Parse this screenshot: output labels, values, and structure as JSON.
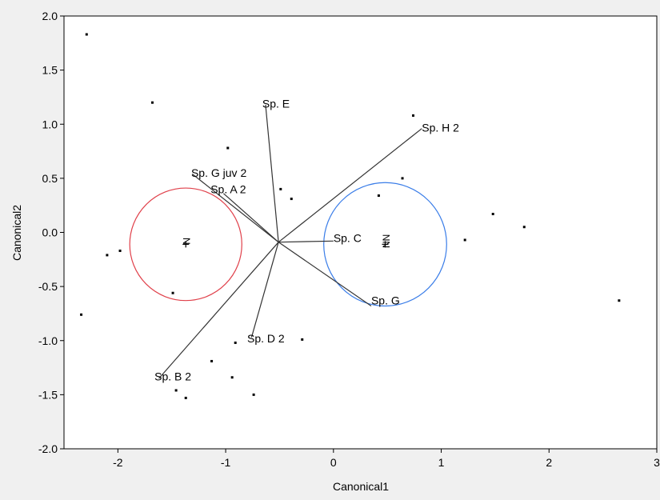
{
  "chart_data": {
    "type": "scatter",
    "title": "",
    "xlabel": "Canonical1",
    "ylabel": "Canonical2",
    "xlim": [
      -2.5,
      3.0
    ],
    "ylim": [
      -2.0,
      2.0
    ],
    "xticks": [
      -2,
      -1,
      0,
      1,
      2,
      3
    ],
    "xtick_labels": [
      "-2",
      "-1",
      "0",
      "1",
      "2",
      "3"
    ],
    "yticks": [
      -2.0,
      -1.5,
      -1.0,
      -0.5,
      0.0,
      0.5,
      1.0,
      1.5,
      2.0
    ],
    "ytick_labels": [
      "-2.0",
      "-1.5",
      "-1.0",
      "-0.5",
      "0.0",
      "0.5",
      "1.0",
      "1.5",
      "2.0"
    ],
    "grid": false,
    "points": [
      {
        "x": -2.29,
        "y": 1.83
      },
      {
        "x": -1.68,
        "y": 1.2
      },
      {
        "x": -0.98,
        "y": 0.78
      },
      {
        "x": 0.74,
        "y": 1.08
      },
      {
        "x": 0.64,
        "y": 0.5
      },
      {
        "x": -0.49,
        "y": 0.4
      },
      {
        "x": -0.39,
        "y": 0.31
      },
      {
        "x": 0.42,
        "y": 0.34
      },
      {
        "x": 1.48,
        "y": 0.17
      },
      {
        "x": 1.77,
        "y": 0.05
      },
      {
        "x": 1.22,
        "y": -0.07
      },
      {
        "x": -2.1,
        "y": -0.21
      },
      {
        "x": -1.98,
        "y": -0.17
      },
      {
        "x": -1.49,
        "y": -0.56
      },
      {
        "x": -2.34,
        "y": -0.76
      },
      {
        "x": 2.65,
        "y": -0.63
      },
      {
        "x": -0.91,
        "y": -1.02
      },
      {
        "x": -0.29,
        "y": -0.99
      },
      {
        "x": -1.13,
        "y": -1.19
      },
      {
        "x": -0.94,
        "y": -1.34
      },
      {
        "x": -1.46,
        "y": -1.46
      },
      {
        "x": -1.37,
        "y": -1.53
      },
      {
        "x": -0.74,
        "y": -1.5
      }
    ],
    "biplot_origin": {
      "x": -0.51,
      "y": -0.09
    },
    "vectors": [
      {
        "label": "Sp. E",
        "x": -0.63,
        "y": 1.18
      },
      {
        "label": "Sp. H 2",
        "x": 0.82,
        "y": 0.96
      },
      {
        "label": "Sp. G juv 2",
        "x": -1.31,
        "y": 0.54
      },
      {
        "label": "Sp. A 2",
        "x": -1.02,
        "y": 0.36
      },
      {
        "label": "Sp. C",
        "x": 0.0,
        "y": -0.08
      },
      {
        "label": "Sp. G",
        "x": 0.35,
        "y": -0.68
      },
      {
        "label": "Sp. D 2",
        "x": -0.76,
        "y": -0.97
      },
      {
        "label": "Sp. B 2",
        "x": -1.62,
        "y": -1.35
      }
    ],
    "vector_labels": [
      {
        "text": "Sp. E",
        "x": -0.66,
        "y": 1.19
      },
      {
        "text": "Sp. H 2",
        "x": 0.82,
        "y": 0.97
      },
      {
        "text": "Sp. G juv 2",
        "x": -1.32,
        "y": 0.55
      },
      {
        "text": "Sp. A 2",
        "x": -1.14,
        "y": 0.4
      },
      {
        "text": "Sp. C",
        "x": 0.0,
        "y": -0.05
      },
      {
        "text": "Sp. G",
        "x": 0.35,
        "y": -0.63
      },
      {
        "text": "Sp. D 2",
        "x": -0.8,
        "y": -0.98
      },
      {
        "text": "Sp. B 2",
        "x": -1.66,
        "y": -1.33
      }
    ],
    "group_means": [
      {
        "label": "N",
        "x": -1.37,
        "y": -0.11,
        "radius": 0.52,
        "color": "#e0404a"
      },
      {
        "label": "NN",
        "x": 0.48,
        "y": -0.11,
        "radius": 0.57,
        "color": "#3a7de8"
      }
    ],
    "vector_color": "#333333",
    "point_color": "#000000"
  }
}
